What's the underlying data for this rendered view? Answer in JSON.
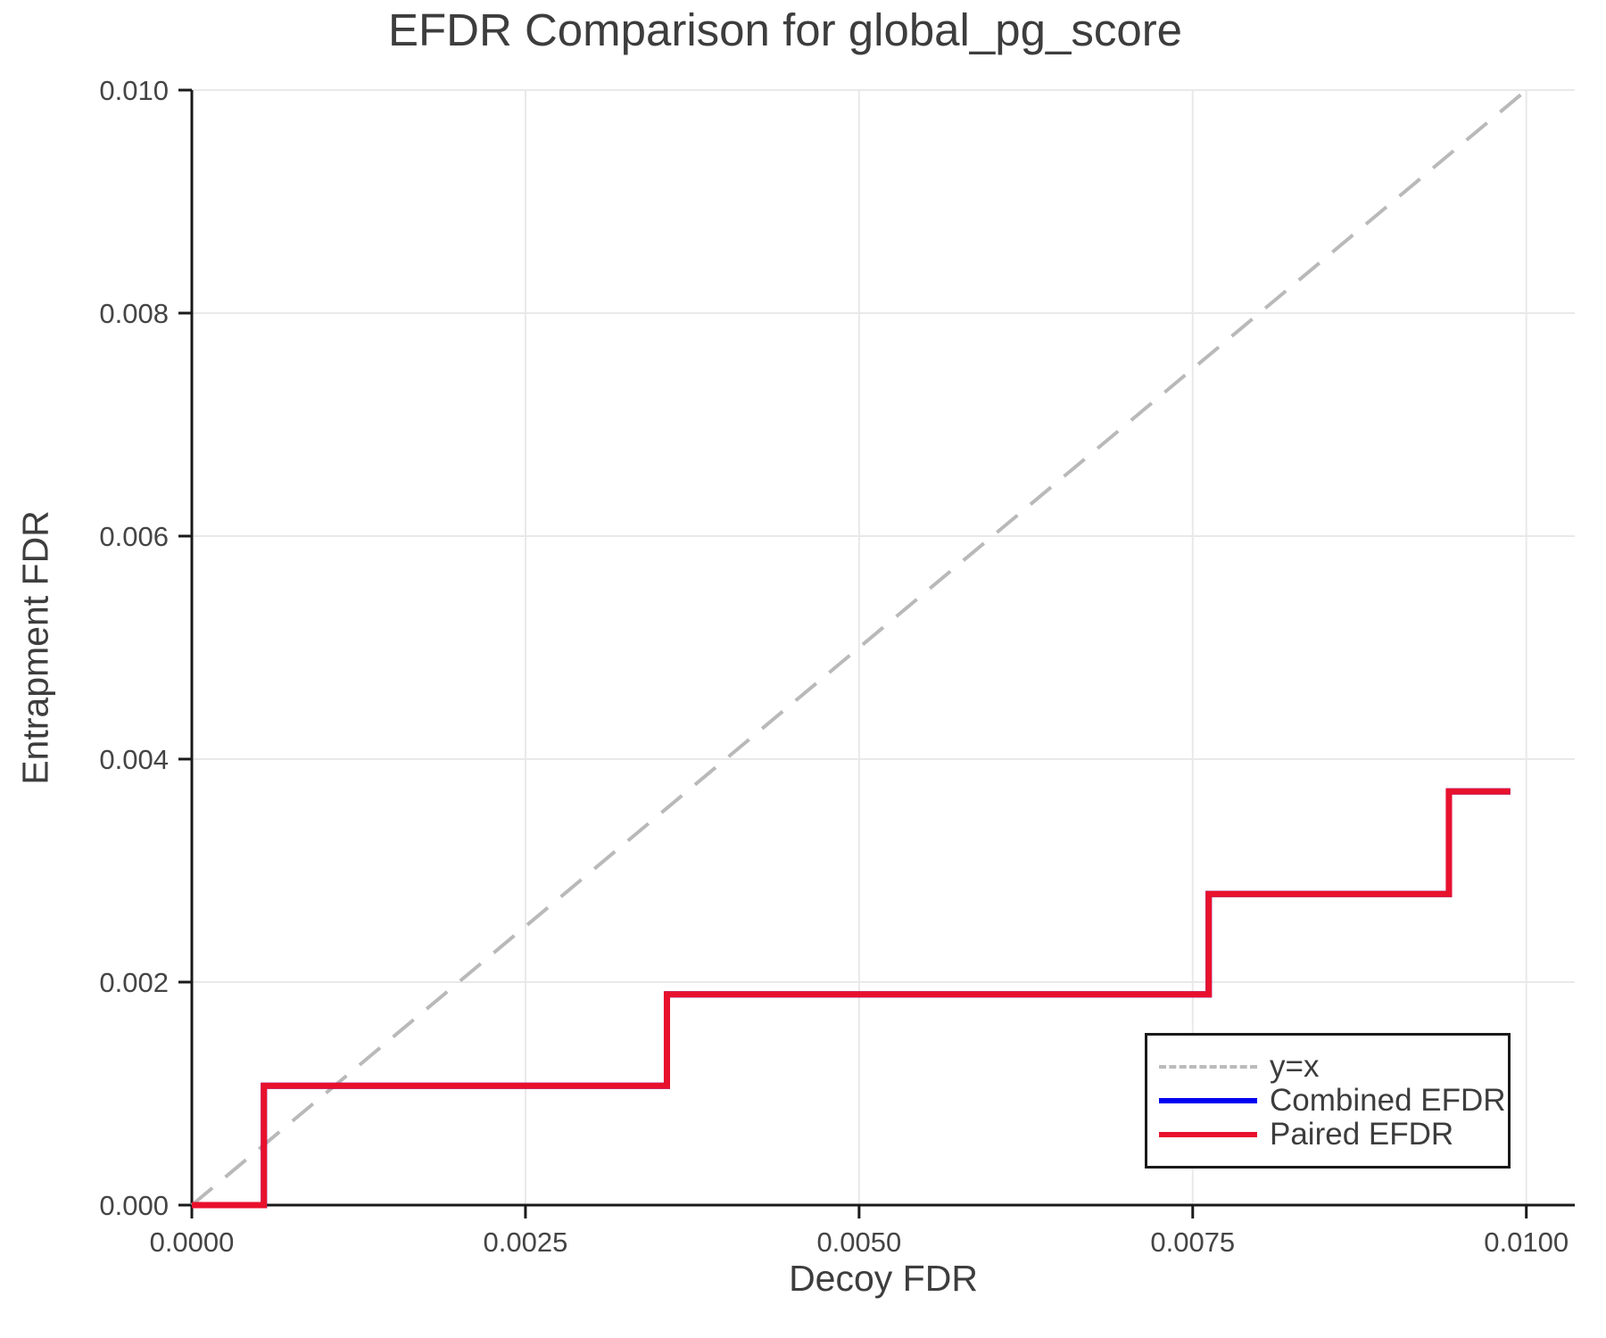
{
  "chart_data": {
    "type": "line",
    "title": "EFDR Comparison for global_pg_score",
    "xlabel": "Decoy FDR",
    "ylabel": "Entrapment FDR",
    "xlim": [
      0,
      0.010363
    ],
    "ylim": [
      0,
      0.01
    ],
    "grid": true,
    "legend_position": "lower right",
    "x_ticks": {
      "values": [
        0,
        0.0025,
        0.005,
        0.0075,
        0.01
      ],
      "labels": [
        "0.0000",
        "0.0025",
        "0.0050",
        "0.0075",
        "0.0100"
      ]
    },
    "y_ticks": {
      "values": [
        0,
        0.002,
        0.004,
        0.006,
        0.008,
        0.01
      ],
      "labels": [
        "0.000",
        "0.002",
        "0.004",
        "0.006",
        "0.008",
        "0.010"
      ]
    },
    "series": [
      {
        "name": "y=x",
        "color": "#b9b9b9",
        "style": "dashed",
        "width": 4,
        "points": [
          [
            0,
            0
          ],
          [
            0.01,
            0.01
          ]
        ]
      },
      {
        "name": "Combined EFDR",
        "color": "#0000f0",
        "style": "solid",
        "width": 7,
        "points": [
          [
            0,
            0
          ],
          [
            0.00054,
            0
          ],
          [
            0.00054,
            0.00107
          ],
          [
            0.00356,
            0.00107
          ],
          [
            0.00356,
            0.00189
          ],
          [
            0.00762,
            0.00189
          ],
          [
            0.00762,
            0.00279
          ],
          [
            0.00942,
            0.00279
          ],
          [
            0.00942,
            0.00371
          ],
          [
            0.00988,
            0.00371
          ]
        ]
      },
      {
        "name": "Paired EFDR",
        "color": "#e8112d",
        "style": "solid",
        "width": 7,
        "points": [
          [
            0,
            0
          ],
          [
            0.00054,
            0
          ],
          [
            0.00054,
            0.00107
          ],
          [
            0.00356,
            0.00107
          ],
          [
            0.00356,
            0.00189
          ],
          [
            0.00762,
            0.00189
          ],
          [
            0.00762,
            0.00279
          ],
          [
            0.00942,
            0.00279
          ],
          [
            0.00942,
            0.00371
          ],
          [
            0.00988,
            0.00371
          ]
        ]
      }
    ],
    "colors": {
      "grid": "#e9e9e9",
      "spine": "#1a1a1a",
      "text": "#3d3d3d"
    }
  }
}
